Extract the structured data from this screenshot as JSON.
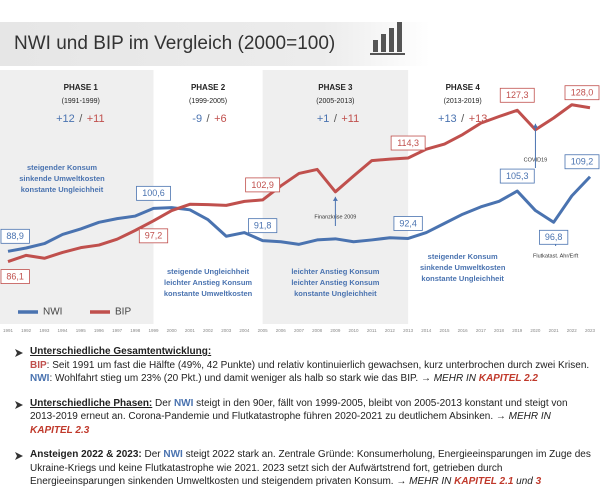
{
  "chart_data": {
    "type": "line",
    "title": "NWI und BIP im Vergleich (2000=100)",
    "x": [
      1991,
      1992,
      1993,
      1994,
      1995,
      1996,
      1997,
      1998,
      1999,
      2000,
      2001,
      2002,
      2003,
      2004,
      2005,
      2006,
      2007,
      2008,
      2009,
      2010,
      2011,
      2012,
      2013,
      2014,
      2015,
      2016,
      2017,
      2018,
      2019,
      2020,
      2021,
      2022,
      2023
    ],
    "xlim": [
      1991,
      2023
    ],
    "ylim": [
      80,
      135
    ],
    "legend": "bottom-left",
    "series": [
      {
        "name": "NWI",
        "color": "#4a73b0",
        "values": [
          88.9,
          89.8,
          91.0,
          93.5,
          95.0,
          96.8,
          97.8,
          98.5,
          100.6,
          100.8,
          100.2,
          97.5,
          93.0,
          94.0,
          91.8,
          91.5,
          90.8,
          92.0,
          92.3,
          91.5,
          92.0,
          92.6,
          92.4,
          94.0,
          96.5,
          99.0,
          101.0,
          102.5,
          105.3,
          100.0,
          96.8,
          104.0,
          109.2
        ],
        "value_labels": [
          "88,9",
          null,
          null,
          null,
          null,
          null,
          null,
          null,
          "100,6",
          null,
          null,
          null,
          null,
          null,
          "91,8",
          null,
          null,
          null,
          null,
          null,
          null,
          null,
          "92,4",
          null,
          null,
          null,
          null,
          null,
          "105,3",
          null,
          "96,8",
          null,
          "109,2"
        ]
      },
      {
        "name": "BIP",
        "color": "#c0504d",
        "values": [
          86.1,
          87.8,
          87.0,
          88.6,
          89.9,
          90.6,
          92.2,
          94.6,
          97.2,
          100.0,
          101.7,
          101.6,
          101.4,
          102.5,
          102.9,
          106.7,
          110.1,
          111.2,
          105.1,
          109.4,
          113.6,
          114.0,
          114.3,
          116.7,
          118.1,
          120.7,
          123.8,
          125.6,
          127.3,
          122.0,
          125.2,
          128.8,
          128.0
        ],
        "value_labels": [
          "86,1",
          null,
          null,
          null,
          null,
          null,
          null,
          null,
          "97,2",
          null,
          null,
          null,
          null,
          null,
          "102,9",
          null,
          null,
          null,
          null,
          null,
          null,
          null,
          "114,3",
          null,
          null,
          null,
          null,
          null,
          "127,3",
          null,
          null,
          null,
          "128,0"
        ]
      }
    ],
    "phase_change_separator": "/",
    "phases": [
      {
        "name": "PHASE 1",
        "period": "(1991-1999)",
        "start": 1991,
        "end": 1999,
        "nwi_change": "+12",
        "bip_change": "+11",
        "description": [
          "steigender Konsum",
          "sinkende Umweltkosten",
          "konstante Ungleichheit"
        ]
      },
      {
        "name": "PHASE 2",
        "period": "(1999-2005)",
        "start": 1999,
        "end": 2005,
        "nwi_change": "-9",
        "bip_change": "+6",
        "description": [
          "steigende Ungleichheit",
          "leichter Anstieg Konsum",
          "konstante Umweltkosten"
        ]
      },
      {
        "name": "PHASE 3",
        "period": "(2005-2013)",
        "start": 2005,
        "end": 2013,
        "nwi_change": "+1",
        "bip_change": "+11",
        "description": [
          "leichter Anstieg Konsum",
          "leichter Anstieg Konsum",
          "konstante Ungleichheit"
        ]
      },
      {
        "name": "PHASE 4",
        "period": "(2013-2019)",
        "start": 2013,
        "end": 2019,
        "nwi_change": "+13",
        "bip_change": "+13",
        "description": [
          "steigender Konsum",
          "sinkende Umweltkosten",
          "konstante Ungleichheit"
        ]
      }
    ],
    "annotations": [
      "Finanzkrise 2009",
      "COVID19",
      "Flutkatast. Ahr/Erft"
    ]
  },
  "notes": [
    {
      "heading": "Unterschiedliche Gesamtentwicklung:",
      "lines": [
        [
          "BIP",
          ": Seit 1991 um fast die Hälfte (49%, 42 Punkte) und relativ kontinuierlich gewachsen, kurz unterbrochen durch zwei Krisen."
        ],
        [
          "NWI",
          ": Wohlfahrt stieg um 23% (20 Pkt.) und damit weniger als halb so stark wie das BIP. ",
          "→ MEHR IN ",
          "KAPITEL 2.2"
        ]
      ]
    },
    {
      "heading": "Unterschiedliche Phasen:",
      "text": [
        " Der ",
        "NWI",
        " steigt in den 90er, fällt von 1999-2005, bleibt von 2005-2013 konstant und steigt von 2013-2019 erneut an. Corona-Pandemie und Flutkatastrophe führen 2020-2021 zu deutlichem Absinken. ",
        "→ MEHR IN ",
        "KAPITEL 2.3"
      ]
    },
    {
      "heading": "Ansteigen 2022 & 2023:",
      "text": [
        " Der ",
        "NWI",
        " steigt 2022 stark an. Zentrale Gründe: Konsumerholung, Energieeinsparungen im Zuge des Ukraine-Kriegs und keine Flutkatastrophe wie 2021. 2023 setzt sich der Aufwärtstrend fort, getrieben durch Energieeinsparungen sinkenden Umweltkosten und steigendem privaten Konsum. ",
        "→ MEHR IN ",
        "KAPITEL 2.1",
        " und ",
        "3"
      ]
    }
  ]
}
